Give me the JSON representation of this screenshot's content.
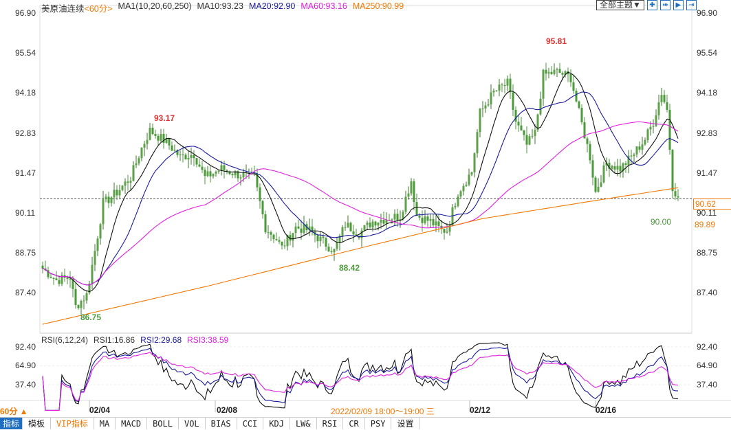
{
  "header": {
    "instrument": "美原油连续",
    "period": "<60分>",
    "indicator": "MA1(10,20,60,250)",
    "ma10": "MA10:93.23",
    "ma20": "MA20:92.90",
    "ma60": "MA60:93.16",
    "ma250": "MA250:90.99"
  },
  "toolbar": {
    "theme_label": "全部主题▼",
    "icons": [
      "crosshair-icon",
      "fit-icon",
      "play-icon",
      "exit-icon"
    ]
  },
  "price_axis": [
    "96.90",
    "95.54",
    "94.18",
    "92.83",
    "91.47",
    "90.11",
    "88.75",
    "87.40"
  ],
  "current_price": "90.62",
  "ma250_value": "89.89",
  "last_low": "90.00",
  "annotations": {
    "high1": "93.17",
    "low1": "86.75",
    "low2": "88.42",
    "high2": "95.81"
  },
  "rsi": {
    "title": "RSI(6,12,24)",
    "rsi1": "RSI1:16.86",
    "rsi2": "RSI2:29.68",
    "rsi3": "RSI3:38.59",
    "axis": [
      "92.40",
      "64.90",
      "37.40"
    ]
  },
  "x_axis": [
    "02/04",
    "02/08",
    "02/12",
    "02/16"
  ],
  "period_label": "60分 ▲",
  "timestamp": "2022/02/09 18:00～19:00 三",
  "tabs": [
    "指标",
    "模板",
    "VIP指标",
    "MA",
    "MACD",
    "BOLL",
    "VOL",
    "BIAS",
    "CCI",
    "KDJ",
    "LW&",
    "RSI",
    "CR",
    "PSY",
    "设置"
  ],
  "colors": {
    "up": "#e03030",
    "down": "#4a9a3a",
    "ma10": "#111111",
    "ma20": "#1a1aa0",
    "ma60": "#e020e0",
    "ma250": "#f07800"
  },
  "chart_data": {
    "type": "candlestick",
    "y_range": [
      87.4,
      96.9
    ],
    "close_anchors": [
      [
        0,
        88.2
      ],
      [
        5,
        87.8
      ],
      [
        10,
        87.9
      ],
      [
        12,
        86.9
      ],
      [
        16,
        87.3
      ],
      [
        19,
        88.8
      ],
      [
        22,
        90.4
      ],
      [
        27,
        90.8
      ],
      [
        32,
        91.3
      ],
      [
        36,
        92.3
      ],
      [
        39,
        92.9
      ],
      [
        45,
        92.5
      ],
      [
        50,
        92.0
      ],
      [
        55,
        92.1
      ],
      [
        59,
        91.3
      ],
      [
        65,
        91.6
      ],
      [
        71,
        91.4
      ],
      [
        77,
        91.3
      ],
      [
        81,
        89.6
      ],
      [
        85,
        89.2
      ],
      [
        87,
        88.9
      ],
      [
        92,
        89.6
      ],
      [
        97,
        89.5
      ],
      [
        102,
        89.1
      ],
      [
        106,
        88.8
      ],
      [
        110,
        89.7
      ],
      [
        115,
        89.4
      ],
      [
        120,
        89.8
      ],
      [
        125,
        89.9
      ],
      [
        130,
        90.0
      ],
      [
        134,
        91.2
      ],
      [
        136,
        90.0
      ],
      [
        141,
        89.8
      ],
      [
        145,
        89.5
      ],
      [
        147,
        89.5
      ],
      [
        151,
        90.8
      ],
      [
        156,
        91.5
      ],
      [
        159,
        93.5
      ],
      [
        164,
        94.2
      ],
      [
        169,
        94.5
      ],
      [
        172,
        93.2
      ],
      [
        176,
        92.4
      ],
      [
        179,
        92.8
      ],
      [
        182,
        94.8
      ],
      [
        187,
        94.9
      ],
      [
        192,
        94.7
      ],
      [
        195,
        93.5
      ],
      [
        199,
        92.0
      ],
      [
        201,
        90.8
      ],
      [
        205,
        91.8
      ],
      [
        210,
        91.6
      ],
      [
        214,
        92.0
      ],
      [
        219,
        92.6
      ],
      [
        222,
        93.2
      ],
      [
        225,
        94.2
      ],
      [
        227,
        93.6
      ],
      [
        229,
        91.0
      ],
      [
        231,
        90.62
      ]
    ],
    "ma250_anchors": [
      [
        0,
        86.3
      ],
      [
        60,
        87.6
      ],
      [
        120,
        89.0
      ],
      [
        160,
        89.9
      ],
      [
        200,
        90.5
      ],
      [
        231,
        90.95
      ]
    ],
    "rsi_range": [
      37.4,
      92.4
    ]
  }
}
